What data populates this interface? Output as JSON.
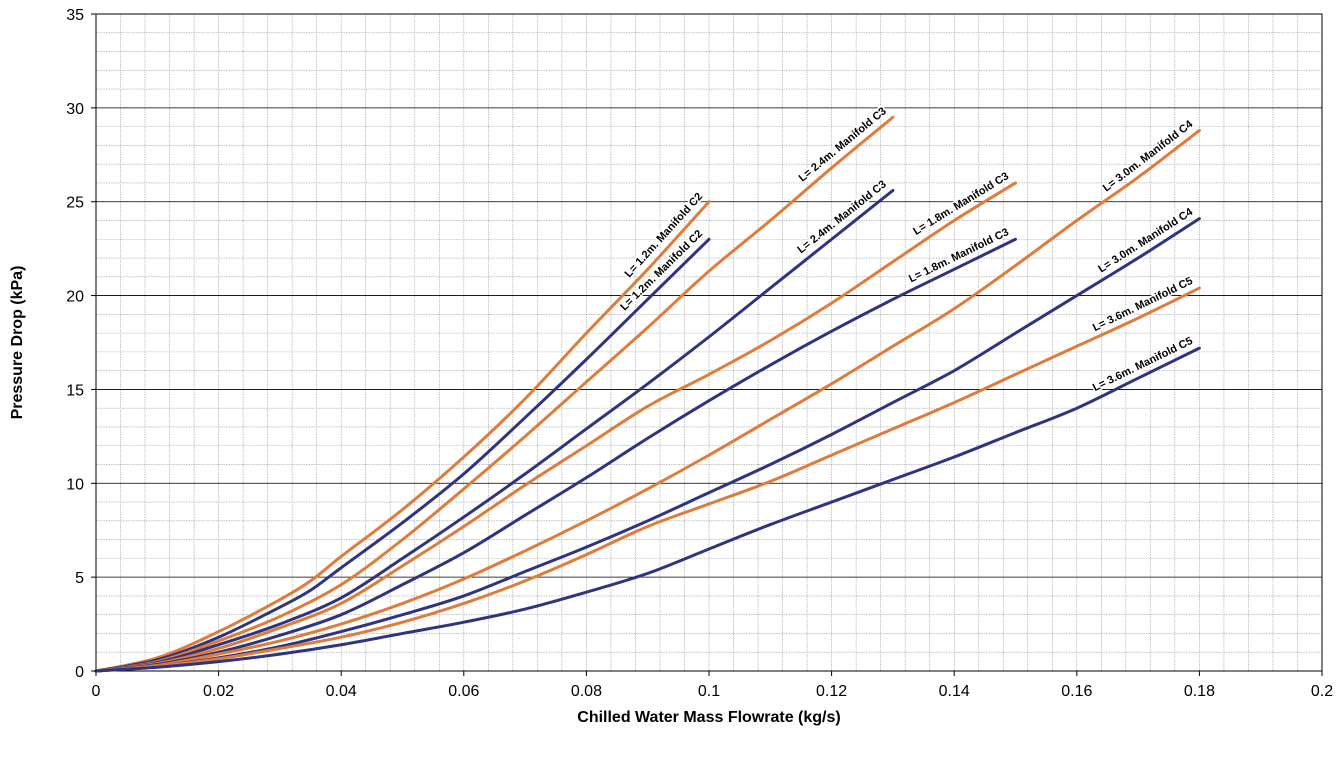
{
  "chart_data": {
    "type": "line",
    "title": "",
    "xlabel": "Chilled Water Mass Flowrate (kg/s)",
    "ylabel": "Pressure Drop (kPa)",
    "xlim": [
      0,
      0.2
    ],
    "ylim": [
      0,
      35
    ],
    "x_ticks": [
      "0",
      "0.02",
      "0.04",
      "0.06",
      "0.08",
      "0.1",
      "0.12",
      "0.14",
      "0.16",
      "0.18",
      "0.2"
    ],
    "y_ticks": [
      "0",
      "5",
      "10",
      "15",
      "20",
      "25",
      "30",
      "35"
    ],
    "grid": true,
    "legend": "none",
    "colors": {
      "orange": "#e07b39",
      "navy": "#2e3480",
      "major_grid": "#000000",
      "minor_grid": "#a0a0a0"
    },
    "series": [
      {
        "label": "L= 1.2m. Manifold C2",
        "color": "orange",
        "points": [
          [
            0,
            0
          ],
          [
            0.01,
            0.7
          ],
          [
            0.02,
            2.1
          ],
          [
            0.03,
            3.8
          ],
          [
            0.035,
            4.8
          ],
          [
            0.04,
            6.1
          ],
          [
            0.05,
            8.6
          ],
          [
            0.06,
            11.4
          ],
          [
            0.07,
            14.5
          ],
          [
            0.08,
            18.0
          ],
          [
            0.09,
            21.4
          ],
          [
            0.1,
            25.0
          ]
        ]
      },
      {
        "label": "L= 1.2m. Manifold C2",
        "color": "navy",
        "points": [
          [
            0,
            0
          ],
          [
            0.01,
            0.6
          ],
          [
            0.02,
            1.8
          ],
          [
            0.03,
            3.4
          ],
          [
            0.035,
            4.3
          ],
          [
            0.04,
            5.5
          ],
          [
            0.05,
            7.9
          ],
          [
            0.06,
            10.5
          ],
          [
            0.07,
            13.5
          ],
          [
            0.08,
            16.6
          ],
          [
            0.09,
            19.8
          ],
          [
            0.1,
            23.0
          ]
        ]
      },
      {
        "label": "L= 2.4m. Manifold C3",
        "color": "orange",
        "points": [
          [
            0,
            0
          ],
          [
            0.01,
            0.5
          ],
          [
            0.02,
            1.6
          ],
          [
            0.03,
            2.9
          ],
          [
            0.04,
            4.6
          ],
          [
            0.05,
            7.0
          ],
          [
            0.06,
            9.7
          ],
          [
            0.07,
            12.5
          ],
          [
            0.08,
            15.4
          ],
          [
            0.09,
            18.3
          ],
          [
            0.1,
            21.3
          ],
          [
            0.11,
            24.0
          ],
          [
            0.12,
            26.8
          ],
          [
            0.13,
            29.5
          ]
        ]
      },
      {
        "label": "L= 2.4m. Manifold C3",
        "color": "navy",
        "points": [
          [
            0,
            0
          ],
          [
            0.01,
            0.45
          ],
          [
            0.02,
            1.4
          ],
          [
            0.03,
            2.5
          ],
          [
            0.04,
            3.9
          ],
          [
            0.05,
            6.0
          ],
          [
            0.06,
            8.2
          ],
          [
            0.07,
            10.5
          ],
          [
            0.08,
            12.9
          ],
          [
            0.09,
            15.3
          ],
          [
            0.1,
            17.8
          ],
          [
            0.11,
            20.4
          ],
          [
            0.12,
            23.0
          ],
          [
            0.13,
            25.6
          ]
        ]
      },
      {
        "label": "L= 1.8m. Manifold C3",
        "color": "orange",
        "points": [
          [
            0,
            0
          ],
          [
            0.01,
            0.4
          ],
          [
            0.02,
            1.2
          ],
          [
            0.03,
            2.3
          ],
          [
            0.04,
            3.6
          ],
          [
            0.05,
            5.6
          ],
          [
            0.06,
            7.7
          ],
          [
            0.07,
            9.9
          ],
          [
            0.08,
            12.0
          ],
          [
            0.09,
            14.1
          ],
          [
            0.1,
            15.8
          ],
          [
            0.11,
            17.6
          ],
          [
            0.12,
            19.6
          ],
          [
            0.13,
            21.8
          ],
          [
            0.14,
            24.0
          ],
          [
            0.15,
            26.0
          ]
        ]
      },
      {
        "label": "L= 1.8m. Manifold C3",
        "color": "navy",
        "points": [
          [
            0,
            0
          ],
          [
            0.01,
            0.35
          ],
          [
            0.02,
            1.0
          ],
          [
            0.03,
            1.9
          ],
          [
            0.04,
            3.0
          ],
          [
            0.05,
            4.6
          ],
          [
            0.06,
            6.3
          ],
          [
            0.07,
            8.3
          ],
          [
            0.08,
            10.3
          ],
          [
            0.09,
            12.4
          ],
          [
            0.1,
            14.4
          ],
          [
            0.11,
            16.3
          ],
          [
            0.12,
            18.1
          ],
          [
            0.13,
            19.8
          ],
          [
            0.14,
            21.4
          ],
          [
            0.15,
            23.0
          ]
        ]
      },
      {
        "label": "L= 3.0m. Manifold C4",
        "color": "orange",
        "points": [
          [
            0,
            0
          ],
          [
            0.01,
            0.3
          ],
          [
            0.02,
            0.9
          ],
          [
            0.03,
            1.6
          ],
          [
            0.04,
            2.5
          ],
          [
            0.05,
            3.6
          ],
          [
            0.06,
            4.9
          ],
          [
            0.07,
            6.4
          ],
          [
            0.08,
            8.0
          ],
          [
            0.09,
            9.7
          ],
          [
            0.1,
            11.5
          ],
          [
            0.11,
            13.4
          ],
          [
            0.12,
            15.3
          ],
          [
            0.13,
            17.3
          ],
          [
            0.14,
            19.3
          ],
          [
            0.15,
            21.6
          ],
          [
            0.16,
            24.0
          ],
          [
            0.17,
            26.3
          ],
          [
            0.18,
            28.8
          ]
        ]
      },
      {
        "label": "L= 3.0m. Manifold C4",
        "color": "navy",
        "points": [
          [
            0,
            0
          ],
          [
            0.01,
            0.25
          ],
          [
            0.02,
            0.7
          ],
          [
            0.03,
            1.3
          ],
          [
            0.04,
            2.1
          ],
          [
            0.05,
            3.0
          ],
          [
            0.06,
            4.0
          ],
          [
            0.07,
            5.3
          ],
          [
            0.08,
            6.6
          ],
          [
            0.09,
            8.0
          ],
          [
            0.1,
            9.5
          ],
          [
            0.11,
            11.0
          ],
          [
            0.12,
            12.6
          ],
          [
            0.13,
            14.3
          ],
          [
            0.14,
            16.0
          ],
          [
            0.15,
            18.0
          ],
          [
            0.16,
            20.0
          ],
          [
            0.17,
            22.0
          ],
          [
            0.18,
            24.1
          ]
        ]
      },
      {
        "label": "L= 3.6m. Manifold C5",
        "color": "orange",
        "points": [
          [
            0,
            0
          ],
          [
            0.01,
            0.25
          ],
          [
            0.02,
            0.65
          ],
          [
            0.03,
            1.2
          ],
          [
            0.04,
            1.8
          ],
          [
            0.05,
            2.6
          ],
          [
            0.06,
            3.6
          ],
          [
            0.07,
            4.8
          ],
          [
            0.08,
            6.2
          ],
          [
            0.09,
            7.7
          ],
          [
            0.1,
            8.9
          ],
          [
            0.11,
            10.1
          ],
          [
            0.12,
            11.5
          ],
          [
            0.13,
            12.9
          ],
          [
            0.14,
            14.3
          ],
          [
            0.15,
            15.8
          ],
          [
            0.16,
            17.3
          ],
          [
            0.17,
            18.8
          ],
          [
            0.18,
            20.4
          ]
        ]
      },
      {
        "label": "L= 3.6m. Manifold C5",
        "color": "navy",
        "points": [
          [
            0,
            0
          ],
          [
            0.01,
            0.2
          ],
          [
            0.02,
            0.5
          ],
          [
            0.03,
            0.9
          ],
          [
            0.04,
            1.4
          ],
          [
            0.05,
            2.0
          ],
          [
            0.06,
            2.6
          ],
          [
            0.07,
            3.3
          ],
          [
            0.08,
            4.2
          ],
          [
            0.09,
            5.2
          ],
          [
            0.1,
            6.5
          ],
          [
            0.11,
            7.8
          ],
          [
            0.12,
            9.0
          ],
          [
            0.13,
            10.2
          ],
          [
            0.14,
            11.4
          ],
          [
            0.15,
            12.7
          ],
          [
            0.16,
            14.0
          ],
          [
            0.17,
            15.6
          ],
          [
            0.18,
            17.2
          ]
        ]
      }
    ]
  }
}
